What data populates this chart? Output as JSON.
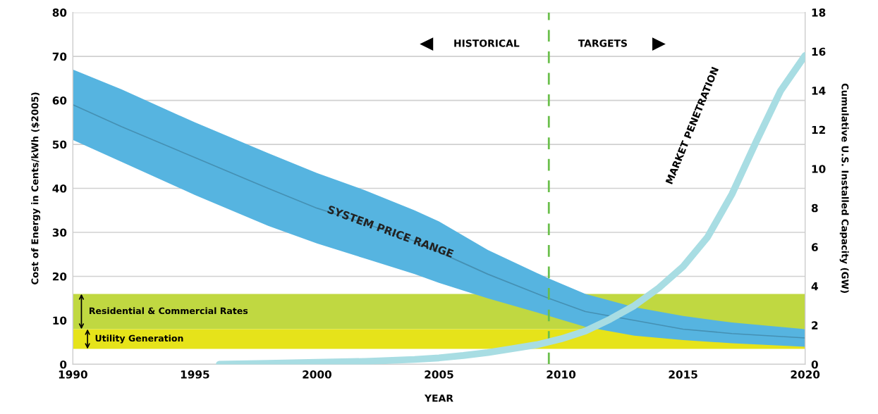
{
  "chart_data": {
    "type": "line",
    "xlabel": "YEAR",
    "ylabel": "Cost of Energy in Cents/kWh ($2005)",
    "y2label": "Cumulative U.S. Installed Capacity (GW)",
    "xlim": [
      1990,
      2020
    ],
    "xticks": [
      1990,
      1995,
      2000,
      2005,
      2010,
      2015,
      2020
    ],
    "ylim": [
      0,
      80
    ],
    "yticks": [
      0,
      10,
      20,
      30,
      40,
      50,
      60,
      70,
      80
    ],
    "y2lim": [
      0,
      18
    ],
    "y2ticks": [
      0,
      2,
      4,
      6,
      8,
      10,
      12,
      14,
      16,
      18
    ],
    "grid": "y",
    "series": [
      {
        "name": "SYSTEM PRICE RANGE",
        "type": "line",
        "color": "#4590b3",
        "x": [
          1990,
          1992,
          1995,
          1998,
          2000,
          2002,
          2004,
          2005,
          2007,
          2009.5,
          2011,
          2013,
          2015,
          2017,
          2020
        ],
        "values": [
          59,
          54,
          47,
          40,
          35.5,
          32,
          28,
          25.5,
          20.5,
          15,
          12,
          10,
          8,
          7,
          6
        ],
        "lower": [
          51,
          46,
          38.5,
          31.5,
          27.5,
          24,
          20.5,
          18.5,
          15,
          11,
          8.5,
          6.5,
          5.5,
          4.8,
          4
        ],
        "upper": [
          67,
          62.5,
          55,
          48,
          43.5,
          39.5,
          35,
          32.5,
          26,
          19.5,
          16,
          13,
          11,
          9.5,
          8
        ]
      },
      {
        "name": "MARKET PENETRATION",
        "type": "line",
        "axis": "y2",
        "color": "#a8dde3",
        "x": [
          1996,
          1998,
          2000,
          2002,
          2004,
          2005,
          2006,
          2007,
          2008,
          2009,
          2010,
          2011,
          2012,
          2013,
          2014,
          2015,
          2016,
          2017,
          2018,
          2019,
          2020
        ],
        "values": [
          0,
          0.05,
          0.1,
          0.15,
          0.25,
          0.33,
          0.45,
          0.6,
          0.8,
          1.0,
          1.3,
          1.7,
          2.3,
          3.0,
          3.9,
          5.0,
          6.5,
          8.7,
          11.4,
          14,
          15.8
        ]
      }
    ],
    "bands": [
      {
        "axis": "y",
        "from": 8,
        "to": 16,
        "label": "Residential & Commercial Rates",
        "color": "#c0d841"
      },
      {
        "axis": "y",
        "from": 3.5,
        "to": 8,
        "label": "Utility Generation",
        "color": "#e6e31a"
      }
    ],
    "ref_lines": [
      {
        "axis": "x",
        "value": 2009.5,
        "color": "#6abf4b",
        "line_style": "dashed"
      }
    ],
    "annotations": [
      "HISTORICAL",
      "TARGETS"
    ]
  }
}
